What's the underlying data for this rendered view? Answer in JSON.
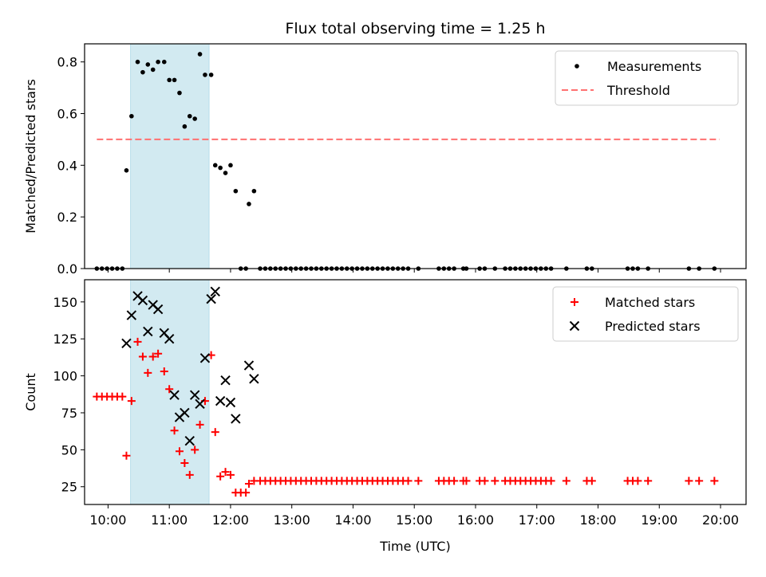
{
  "chart_data": [
    {
      "panel": "top",
      "type": "scatter",
      "title": "Flux total observing time = 1.25 h",
      "xlabel": "",
      "ylabel": "Matched/Predicted stars",
      "xlim": [
        "09:37",
        "20:25"
      ],
      "ylim": [
        0.0,
        0.87
      ],
      "yticks": [
        0.0,
        0.2,
        0.4,
        0.6,
        0.8
      ],
      "ytick_labels": [
        "0.0",
        "0.2",
        "0.4",
        "0.6",
        "0.8"
      ],
      "legend": {
        "placement": "top-right",
        "entries": [
          {
            "label": "Measurements",
            "color": "#000000",
            "marker": "dot"
          },
          {
            "label": "Threshold",
            "color": "#ff7070",
            "marker": "dashed-line"
          }
        ]
      },
      "highlight_span": {
        "x": [
          "10:22",
          "11:39"
        ],
        "color": "#add8e6"
      },
      "threshold": {
        "y": 0.5,
        "x": [
          "09:49",
          "19:59"
        ],
        "color": "#ff7070"
      },
      "series": [
        {
          "name": "Measurements",
          "color": "#000000",
          "points": [
            [
              "09:49",
              0.0
            ],
            [
              "09:54",
              0.0
            ],
            [
              "09:59",
              0.0
            ],
            [
              "10:04",
              0.0
            ],
            [
              "10:09",
              0.0
            ],
            [
              "10:14",
              0.0
            ],
            [
              "10:18",
              0.38
            ],
            [
              "10:23",
              0.59
            ],
            [
              "10:29",
              0.8
            ],
            [
              "10:34",
              0.76
            ],
            [
              "10:39",
              0.79
            ],
            [
              "10:44",
              0.77
            ],
            [
              "10:49",
              0.8
            ],
            [
              "10:55",
              0.8
            ],
            [
              "11:00",
              0.73
            ],
            [
              "11:05",
              0.73
            ],
            [
              "11:10",
              0.68
            ],
            [
              "11:15",
              0.55
            ],
            [
              "11:20",
              0.59
            ],
            [
              "11:25",
              0.58
            ],
            [
              "11:30",
              0.83
            ],
            [
              "11:35",
              0.75
            ],
            [
              "11:41",
              0.75
            ],
            [
              "11:45",
              0.4
            ],
            [
              "11:50",
              0.39
            ],
            [
              "11:55",
              0.37
            ],
            [
              "12:00",
              0.4
            ],
            [
              "12:05",
              0.3
            ],
            [
              "12:10",
              0.0
            ],
            [
              "12:15",
              0.0
            ],
            [
              "12:18",
              0.25
            ],
            [
              "12:23",
              0.3
            ],
            [
              "12:29",
              0.0
            ],
            [
              "12:34",
              0.0
            ],
            [
              "12:39",
              0.0
            ],
            [
              "12:44",
              0.0
            ],
            [
              "12:49",
              0.0
            ],
            [
              "12:54",
              0.0
            ],
            [
              "12:59",
              0.0
            ],
            [
              "13:04",
              0.0
            ],
            [
              "13:09",
              0.0
            ],
            [
              "13:14",
              0.0
            ],
            [
              "13:19",
              0.0
            ],
            [
              "13:24",
              0.0
            ],
            [
              "13:29",
              0.0
            ],
            [
              "13:34",
              0.0
            ],
            [
              "13:39",
              0.0
            ],
            [
              "13:44",
              0.0
            ],
            [
              "13:49",
              0.0
            ],
            [
              "13:54",
              0.0
            ],
            [
              "13:59",
              0.0
            ],
            [
              "14:04",
              0.0
            ],
            [
              "14:09",
              0.0
            ],
            [
              "14:14",
              0.0
            ],
            [
              "14:19",
              0.0
            ],
            [
              "14:24",
              0.0
            ],
            [
              "14:29",
              0.0
            ],
            [
              "14:34",
              0.0
            ],
            [
              "14:39",
              0.0
            ],
            [
              "14:44",
              0.0
            ],
            [
              "14:49",
              0.0
            ],
            [
              "14:54",
              0.0
            ],
            [
              "15:04",
              0.0
            ],
            [
              "15:24",
              0.0
            ],
            [
              "15:29",
              0.0
            ],
            [
              "15:34",
              0.0
            ],
            [
              "15:39",
              0.0
            ],
            [
              "15:48",
              0.0
            ],
            [
              "15:51",
              0.0
            ],
            [
              "16:04",
              0.0
            ],
            [
              "16:09",
              0.0
            ],
            [
              "16:19",
              0.0
            ],
            [
              "16:29",
              0.0
            ],
            [
              "16:34",
              0.0
            ],
            [
              "16:39",
              0.0
            ],
            [
              "16:44",
              0.0
            ],
            [
              "16:49",
              0.0
            ],
            [
              "16:54",
              0.0
            ],
            [
              "16:59",
              0.0
            ],
            [
              "17:04",
              0.0
            ],
            [
              "17:09",
              0.0
            ],
            [
              "17:14",
              0.0
            ],
            [
              "17:29",
              0.0
            ],
            [
              "17:49",
              0.0
            ],
            [
              "17:54",
              0.0
            ],
            [
              "18:29",
              0.0
            ],
            [
              "18:34",
              0.0
            ],
            [
              "18:39",
              0.0
            ],
            [
              "18:49",
              0.0
            ],
            [
              "19:29",
              0.0
            ],
            [
              "19:39",
              0.0
            ],
            [
              "19:54",
              0.0
            ]
          ]
        }
      ]
    },
    {
      "panel": "bottom",
      "type": "scatter",
      "title": "",
      "xlabel": "Time (UTC)",
      "ylabel": "Count",
      "xlim": [
        "09:37",
        "20:25"
      ],
      "xticks": [
        "10:00",
        "11:00",
        "12:00",
        "13:00",
        "14:00",
        "15:00",
        "16:00",
        "17:00",
        "18:00",
        "19:00",
        "20:00"
      ],
      "ylim": [
        13,
        165
      ],
      "yticks": [
        25,
        50,
        75,
        100,
        125,
        150
      ],
      "ytick_labels": [
        "25",
        "50",
        "75",
        "100",
        "125",
        "150"
      ],
      "legend": {
        "placement": "top-right",
        "entries": [
          {
            "label": "Matched stars",
            "color": "#ff0000",
            "marker": "plus"
          },
          {
            "label": "Predicted stars",
            "color": "#000000",
            "marker": "x"
          }
        ]
      },
      "highlight_span": {
        "x": [
          "10:22",
          "11:39"
        ],
        "color": "#add8e6"
      },
      "series": [
        {
          "name": "Matched stars",
          "color": "#ff0000",
          "marker": "plus",
          "points": [
            [
              "09:49",
              86
            ],
            [
              "09:54",
              86
            ],
            [
              "09:59",
              86
            ],
            [
              "10:04",
              86
            ],
            [
              "10:09",
              86
            ],
            [
              "10:14",
              86
            ],
            [
              "10:18",
              46
            ],
            [
              "10:23",
              83
            ],
            [
              "10:29",
              123
            ],
            [
              "10:34",
              113
            ],
            [
              "10:39",
              102
            ],
            [
              "10:44",
              113
            ],
            [
              "10:49",
              115
            ],
            [
              "10:55",
              103
            ],
            [
              "11:00",
              91
            ],
            [
              "11:05",
              63
            ],
            [
              "11:10",
              49
            ],
            [
              "11:15",
              41
            ],
            [
              "11:20",
              33
            ],
            [
              "11:25",
              50
            ],
            [
              "11:30",
              67
            ],
            [
              "11:35",
              83
            ],
            [
              "11:41",
              114
            ],
            [
              "11:45",
              62
            ],
            [
              "11:50",
              32
            ],
            [
              "11:55",
              35
            ],
            [
              "12:00",
              33
            ],
            [
              "12:05",
              21
            ],
            [
              "12:10",
              21
            ],
            [
              "12:15",
              21
            ],
            [
              "12:18",
              27
            ],
            [
              "12:23",
              29
            ],
            [
              "12:29",
              29
            ],
            [
              "12:34",
              29
            ],
            [
              "12:39",
              29
            ],
            [
              "12:44",
              29
            ],
            [
              "12:49",
              29
            ],
            [
              "12:54",
              29
            ],
            [
              "12:59",
              29
            ],
            [
              "13:04",
              29
            ],
            [
              "13:09",
              29
            ],
            [
              "13:14",
              29
            ],
            [
              "13:19",
              29
            ],
            [
              "13:24",
              29
            ],
            [
              "13:29",
              29
            ],
            [
              "13:34",
              29
            ],
            [
              "13:39",
              29
            ],
            [
              "13:44",
              29
            ],
            [
              "13:49",
              29
            ],
            [
              "13:54",
              29
            ],
            [
              "13:59",
              29
            ],
            [
              "14:04",
              29
            ],
            [
              "14:09",
              29
            ],
            [
              "14:14",
              29
            ],
            [
              "14:19",
              29
            ],
            [
              "14:24",
              29
            ],
            [
              "14:29",
              29
            ],
            [
              "14:34",
              29
            ],
            [
              "14:39",
              29
            ],
            [
              "14:44",
              29
            ],
            [
              "14:49",
              29
            ],
            [
              "14:54",
              29
            ],
            [
              "15:04",
              29
            ],
            [
              "15:24",
              29
            ],
            [
              "15:29",
              29
            ],
            [
              "15:34",
              29
            ],
            [
              "15:39",
              29
            ],
            [
              "15:48",
              29
            ],
            [
              "15:51",
              29
            ],
            [
              "16:04",
              29
            ],
            [
              "16:09",
              29
            ],
            [
              "16:19",
              29
            ],
            [
              "16:29",
              29
            ],
            [
              "16:34",
              29
            ],
            [
              "16:39",
              29
            ],
            [
              "16:44",
              29
            ],
            [
              "16:49",
              29
            ],
            [
              "16:54",
              29
            ],
            [
              "16:59",
              29
            ],
            [
              "17:04",
              29
            ],
            [
              "17:09",
              29
            ],
            [
              "17:14",
              29
            ],
            [
              "17:29",
              29
            ],
            [
              "17:49",
              29
            ],
            [
              "17:54",
              29
            ],
            [
              "18:29",
              29
            ],
            [
              "18:34",
              29
            ],
            [
              "18:39",
              29
            ],
            [
              "18:49",
              29
            ],
            [
              "19:29",
              29
            ],
            [
              "19:39",
              29
            ],
            [
              "19:54",
              29
            ]
          ]
        },
        {
          "name": "Predicted stars",
          "color": "#000000",
          "marker": "x",
          "points": [
            [
              "10:18",
              122
            ],
            [
              "10:23",
              141
            ],
            [
              "10:29",
              154
            ],
            [
              "10:34",
              151
            ],
            [
              "10:39",
              130
            ],
            [
              "10:44",
              148
            ],
            [
              "10:49",
              145
            ],
            [
              "10:55",
              129
            ],
            [
              "11:00",
              125
            ],
            [
              "11:05",
              87
            ],
            [
              "11:10",
              72
            ],
            [
              "11:15",
              75
            ],
            [
              "11:20",
              56
            ],
            [
              "11:25",
              87
            ],
            [
              "11:30",
              81
            ],
            [
              "11:35",
              112
            ],
            [
              "11:41",
              152
            ],
            [
              "11:45",
              157
            ],
            [
              "11:50",
              83
            ],
            [
              "11:55",
              97
            ],
            [
              "12:00",
              82
            ],
            [
              "12:05",
              71
            ],
            [
              "12:18",
              107
            ],
            [
              "12:23",
              98
            ]
          ]
        }
      ]
    }
  ]
}
